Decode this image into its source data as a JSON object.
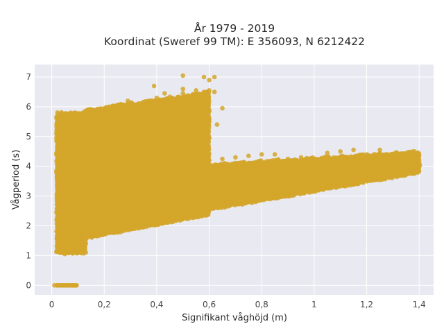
{
  "chart_data": {
    "type": "scatter",
    "title_line1": "År 1979 - 2019",
    "title_line2": "Koordinat (Sweref 99 TM): E 356093, N 6212422",
    "xlabel": "Signifikant våghöjd (m)",
    "ylabel": "Vågperiod (s)",
    "xlim": [
      -0.065,
      1.455
    ],
    "ylim": [
      -0.32,
      7.42
    ],
    "x_ticks": [
      0,
      0.2,
      0.4,
      0.6,
      0.8,
      1,
      1.2,
      1.4
    ],
    "x_tick_labels": [
      "0",
      "0,2",
      "0,4",
      "0,6",
      "0,8",
      "1",
      "1,2",
      "1,4"
    ],
    "y_ticks": [
      0,
      1,
      2,
      3,
      4,
      5,
      6,
      7
    ],
    "y_tick_labels": [
      "0",
      "1",
      "2",
      "3",
      "4",
      "5",
      "6",
      "7"
    ],
    "grid": true,
    "colors": {
      "point": "#d4a62a",
      "plot_bg": "#e9e9f1",
      "grid": "#ffffff"
    },
    "series": [
      {
        "clusters": [
          {
            "kind": "hline",
            "x_range": [
              0.02,
              0.095
            ],
            "y": 0
          },
          {
            "kind": "band",
            "x_range": [
              0.02,
              0.13
            ],
            "y_range": [
              1.1,
              5.8
            ]
          },
          {
            "kind": "band",
            "x_range": [
              0.13,
              0.6
            ],
            "y_range_lo": [
              1.6,
              2.4
            ],
            "y_range_hi": [
              5.9,
              6.5
            ]
          },
          {
            "kind": "band",
            "x_range": [
              0.5,
              1.4
            ],
            "y_range_lo": [
              2.4,
              3.8
            ],
            "y_range_hi": [
              4.0,
              4.5
            ]
          }
        ],
        "points": [
          [
            0.01,
            0
          ],
          [
            0.02,
            0
          ],
          [
            0.04,
            0
          ],
          [
            0.06,
            0
          ],
          [
            0.08,
            0
          ],
          [
            0.095,
            0
          ],
          [
            0.03,
            1.1
          ],
          [
            0.05,
            1.05
          ],
          [
            0.07,
            1.15
          ],
          [
            0.09,
            1.1
          ],
          [
            0.02,
            1.55
          ],
          [
            0.02,
            1.65
          ],
          [
            0.02,
            3.55
          ],
          [
            0.02,
            3.7
          ],
          [
            0.02,
            5.2
          ],
          [
            0.02,
            5.3
          ],
          [
            0.05,
            5.5
          ],
          [
            0.07,
            5.6
          ],
          [
            0.09,
            5.75
          ],
          [
            0.1,
            5.65
          ],
          [
            0.15,
            2.0
          ],
          [
            0.18,
            2.1
          ],
          [
            0.21,
            2.2
          ],
          [
            0.25,
            2.3
          ],
          [
            0.3,
            2.45
          ],
          [
            0.35,
            2.55
          ],
          [
            0.2,
            5.4
          ],
          [
            0.23,
            5.6
          ],
          [
            0.25,
            5.7
          ],
          [
            0.28,
            5.8
          ],
          [
            0.3,
            5.6
          ],
          [
            0.33,
            5.9
          ],
          [
            0.36,
            6.05
          ],
          [
            0.38,
            6.0
          ],
          [
            0.4,
            6.3
          ],
          [
            0.43,
            6.45
          ],
          [
            0.46,
            6.25
          ],
          [
            0.48,
            6.3
          ],
          [
            0.5,
            6.6
          ],
          [
            0.5,
            6.45
          ],
          [
            0.55,
            6.55
          ],
          [
            0.58,
            6.5
          ],
          [
            0.6,
            6.55
          ],
          [
            0.6,
            6.9
          ],
          [
            0.62,
            6.5
          ],
          [
            0.62,
            7.0
          ],
          [
            0.58,
            7.0
          ],
          [
            0.5,
            7.05
          ],
          [
            0.39,
            6.7
          ],
          [
            0.29,
            6.2
          ],
          [
            0.35,
            6.15
          ],
          [
            0.44,
            5.9
          ],
          [
            0.52,
            5.4
          ],
          [
            0.55,
            5.2
          ],
          [
            0.58,
            5.05
          ],
          [
            0.6,
            4.95
          ],
          [
            0.55,
            5.75
          ],
          [
            0.6,
            5.85
          ],
          [
            0.65,
            5.95
          ],
          [
            0.63,
            5.4
          ],
          [
            0.6,
            5.5
          ],
          [
            0.6,
            4.2
          ],
          [
            0.65,
            4.25
          ],
          [
            0.7,
            4.3
          ],
          [
            0.75,
            4.35
          ],
          [
            0.8,
            4.4
          ],
          [
            0.85,
            4.4
          ],
          [
            0.9,
            4.25
          ],
          [
            0.95,
            4.3
          ],
          [
            1.0,
            4.15
          ],
          [
            1.05,
            4.45
          ],
          [
            1.1,
            4.5
          ],
          [
            1.15,
            4.55
          ],
          [
            1.2,
            4.4
          ],
          [
            1.25,
            4.55
          ],
          [
            1.3,
            4.35
          ],
          [
            1.35,
            4.3
          ],
          [
            1.39,
            4.3
          ],
          [
            0.6,
            3.0
          ],
          [
            0.7,
            3.15
          ],
          [
            0.8,
            3.3
          ],
          [
            0.9,
            3.45
          ],
          [
            1.0,
            3.6
          ],
          [
            1.05,
            3.7
          ],
          [
            1.1,
            3.75
          ],
          [
            1.15,
            3.85
          ],
          [
            1.2,
            3.95
          ],
          [
            1.25,
            4.05
          ],
          [
            1.3,
            4.15
          ],
          [
            0.55,
            4.5
          ],
          [
            0.5,
            4.6
          ],
          [
            0.48,
            4.55
          ]
        ]
      }
    ]
  }
}
